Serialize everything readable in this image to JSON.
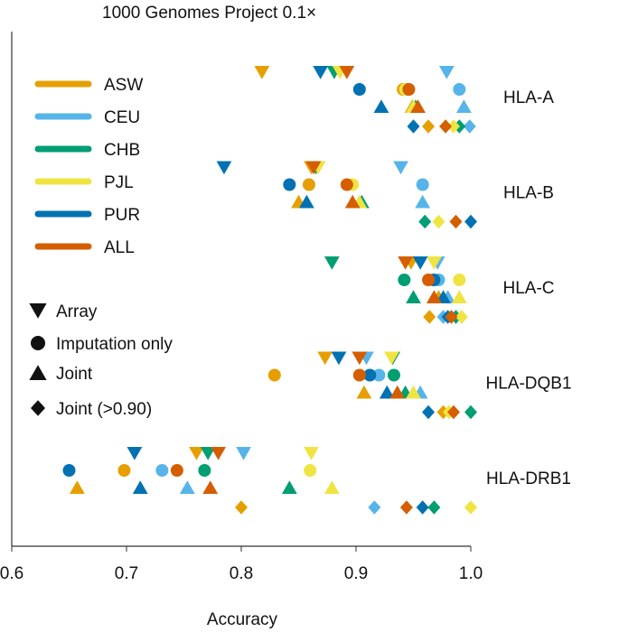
{
  "chart_data": {
    "type": "dot",
    "title": "1000 Genomes Project 0.1×",
    "x_label": "Accuracy",
    "xlim": [
      0.6,
      1.0
    ],
    "xticks": [
      0.6,
      0.7,
      0.8,
      0.9,
      {
        "value": 1,
        "label": "1.0"
      }
    ],
    "categories": [
      "HLA-A",
      "HLA-B",
      "HLA-C",
      "HLA-DQB1",
      "HLA-DRB1"
    ],
    "methods": [
      {
        "name": "Array",
        "marker": "triangle-down"
      },
      {
        "name": "Imputation only",
        "marker": "circle"
      },
      {
        "name": "Joint",
        "marker": "triangle-up"
      },
      {
        "name": "Joint (>0.90)",
        "marker": "diamond"
      }
    ],
    "series": [
      {
        "name": "ASW",
        "color": "#E69F00",
        "values": [
          [
            0.818,
            0.941,
            0.949,
            0.963
          ],
          [
            0.861,
            0.859,
            0.85,
            null
          ],
          [
            0.948,
            0.967,
            0.972,
            0.964
          ],
          [
            0.873,
            0.829,
            0.907,
            0.976
          ],
          [
            0.761,
            0.698,
            0.657,
            0.8
          ]
        ]
      },
      {
        "name": "CEU",
        "color": "#56B4E9",
        "values": [
          [
            0.979,
            0.99,
            0.994,
            0.999
          ],
          [
            0.939,
            0.958,
            0.958,
            null
          ],
          [
            0.971,
            0.972,
            0.98,
            0.976
          ],
          [
            0.909,
            0.92,
            0.956,
            null
          ],
          [
            0.802,
            0.731,
            0.753,
            0.916
          ]
        ]
      },
      {
        "name": "CHB",
        "color": "#009E73",
        "values": [
          [
            0.881,
            0.944,
            0.952,
            0.99
          ],
          [
            0.865,
            null,
            0.905,
            0.96
          ],
          [
            0.879,
            0.942,
            0.95,
            0.987
          ],
          [
            0.932,
            0.933,
            0.943,
            1.0
          ],
          [
            0.771,
            0.768,
            0.842,
            0.968
          ]
        ]
      },
      {
        "name": "PJL",
        "color": "#F0E442",
        "values": [
          [
            0.886,
            0.943,
            0.95,
            0.985
          ],
          [
            0.867,
            0.897,
            0.903,
            0.972
          ],
          [
            0.968,
            0.99,
            0.99,
            0.992
          ],
          [
            0.931,
            null,
            0.95,
            0.981
          ],
          [
            0.861,
            0.86,
            0.879,
            1.0
          ]
        ]
      },
      {
        "name": "PUR",
        "color": "#0072B2",
        "values": [
          [
            0.869,
            0.903,
            0.922,
            0.95
          ],
          [
            0.785,
            0.842,
            0.857,
            1.0
          ],
          [
            0.956,
            0.968,
            0.976,
            0.98
          ],
          [
            0.885,
            0.912,
            0.927,
            0.963
          ],
          [
            0.707,
            0.65,
            0.712,
            0.958
          ]
        ]
      },
      {
        "name": "ALL",
        "color": "#D55E00",
        "values": [
          [
            0.892,
            0.946,
            0.954,
            0.978
          ],
          [
            0.863,
            0.892,
            0.897,
            0.987
          ],
          [
            0.943,
            0.963,
            0.968,
            0.983
          ],
          [
            0.903,
            0.903,
            0.936,
            0.985
          ],
          [
            0.78,
            0.744,
            0.773,
            0.944
          ]
        ]
      }
    ]
  }
}
